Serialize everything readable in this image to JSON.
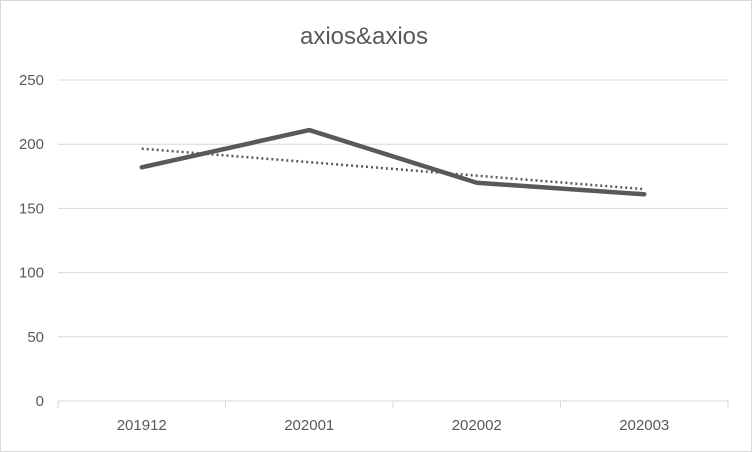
{
  "chart_data": {
    "type": "line",
    "title": "axios&axios",
    "xlabel": "",
    "ylabel": "",
    "categories": [
      "201912",
      "202001",
      "202002",
      "202003"
    ],
    "y_ticks": [
      "0",
      "50",
      "100",
      "150",
      "200",
      "250"
    ],
    "ylim": [
      0,
      250
    ],
    "grid": true,
    "legend": "none",
    "series": [
      {
        "values": [
          182,
          211,
          170,
          161
        ],
        "color": "#595959",
        "style": "solid"
      },
      {
        "values": [
          196.5,
          186,
          175.5,
          165
        ],
        "color": "#595959",
        "style": "dotted",
        "role": "linear trendline"
      }
    ]
  }
}
